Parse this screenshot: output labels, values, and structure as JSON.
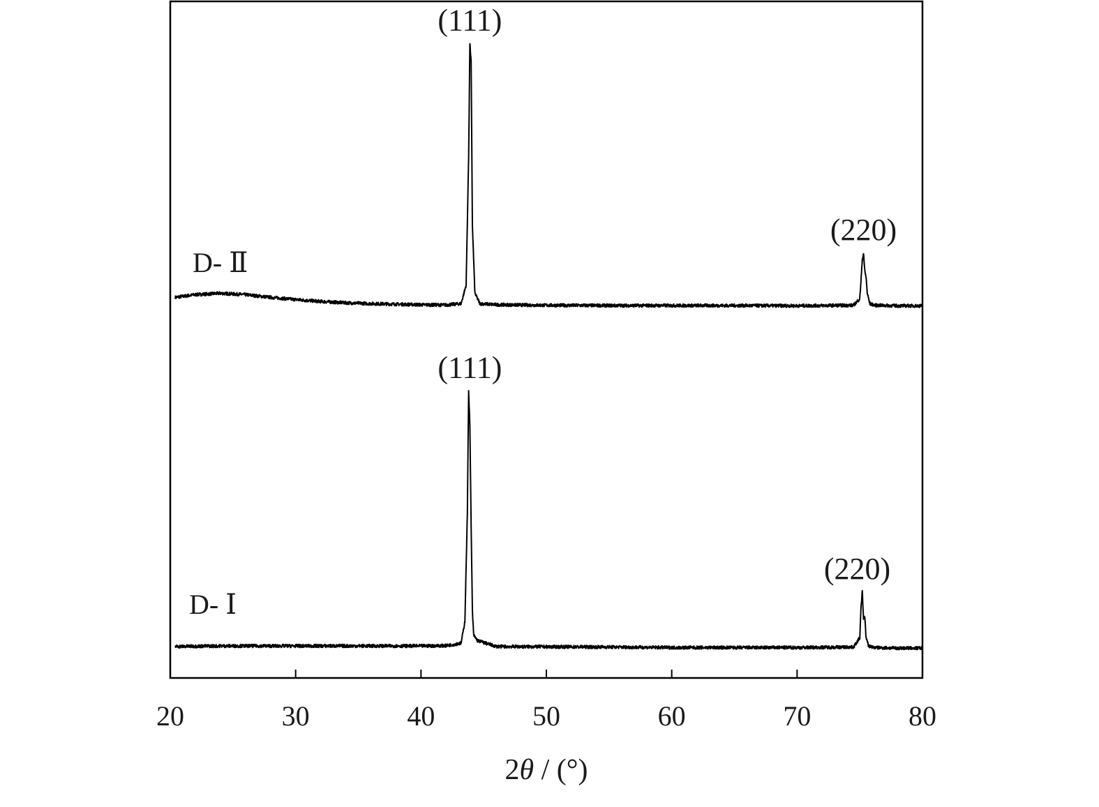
{
  "chart_data": {
    "type": "line",
    "title": "",
    "xlabel": {
      "prefix": "2",
      "symbol": "θ",
      "suffix": " / (°)"
    },
    "ylabel": "",
    "xlim": [
      20,
      80
    ],
    "x_ticks": [
      20,
      30,
      40,
      50,
      60,
      70,
      80
    ],
    "x_tick_labels": [
      "20",
      "30",
      "40",
      "50",
      "60",
      "70",
      "80"
    ],
    "y_ticks_shown": false,
    "grid": false,
    "line_color": "#000000",
    "series": [
      {
        "name": "D- Ⅱ",
        "offset": 1.0,
        "x": [
          20.4,
          22,
          24,
          26,
          28,
          30,
          32,
          34,
          36,
          38,
          40,
          42,
          43.2,
          43.6,
          43.8,
          43.9,
          44.0,
          44.1,
          44.3,
          44.7,
          46,
          50,
          55,
          60,
          65,
          70,
          74.5,
          75.0,
          75.2,
          75.3,
          75.4,
          75.5,
          75.6,
          75.8,
          76.2,
          78,
          80
        ],
        "y": [
          0.035,
          0.045,
          0.05,
          0.045,
          0.035,
          0.027,
          0.02,
          0.015,
          0.012,
          0.01,
          0.008,
          0.007,
          0.012,
          0.08,
          0.55,
          0.97,
          0.9,
          0.3,
          0.05,
          0.012,
          0.008,
          0.006,
          0.005,
          0.005,
          0.005,
          0.004,
          0.006,
          0.03,
          0.17,
          0.2,
          0.13,
          0.11,
          0.05,
          0.012,
          0.006,
          0.004,
          0.004
        ]
      },
      {
        "name": "D- Ⅰ",
        "offset": 0.0,
        "x": [
          20.4,
          22,
          24,
          26,
          28,
          30,
          32,
          34,
          36,
          38,
          40,
          42,
          43.2,
          43.5,
          43.7,
          43.8,
          43.9,
          44.0,
          44.1,
          44.2,
          44.5,
          46,
          50,
          55,
          60,
          65,
          70,
          74.5,
          75.0,
          75.1,
          75.2,
          75.3,
          75.4,
          75.5,
          75.7,
          76.2,
          78,
          80
        ],
        "y": [
          0.008,
          0.009,
          0.01,
          0.01,
          0.01,
          0.01,
          0.01,
          0.01,
          0.01,
          0.01,
          0.01,
          0.011,
          0.02,
          0.1,
          0.5,
          0.95,
          0.82,
          0.45,
          0.14,
          0.05,
          0.03,
          0.008,
          0.007,
          0.006,
          0.004,
          0.004,
          0.004,
          0.006,
          0.04,
          0.15,
          0.21,
          0.11,
          0.12,
          0.04,
          0.01,
          0.004,
          0.002,
          0.002
        ]
      }
    ],
    "annotations": [
      {
        "series": 0,
        "text": "(111)",
        "x": 43.9
      },
      {
        "series": 0,
        "text": "(220)",
        "x": 75.3
      },
      {
        "series": 1,
        "text": "(111)",
        "x": 43.9
      },
      {
        "series": 1,
        "text": "(220)",
        "x": 74.8
      }
    ]
  }
}
